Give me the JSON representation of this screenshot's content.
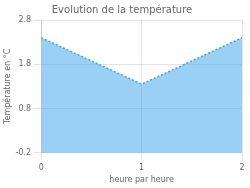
{
  "chart_data": {
    "type": "area",
    "title": "Evolution de la température",
    "xlabel": "heure par heure",
    "ylabel": "Température en °C",
    "x": [
      0,
      1,
      2
    ],
    "values": [
      2.4,
      1.35,
      2.4
    ],
    "xlim": [
      0,
      2
    ],
    "ylim": [
      -0.2,
      2.8
    ],
    "xticks": [
      0,
      1,
      2
    ],
    "yticks": [
      -0.2,
      0.8,
      1.8,
      2.8
    ],
    "grid": true,
    "line_style": "dotted"
  }
}
